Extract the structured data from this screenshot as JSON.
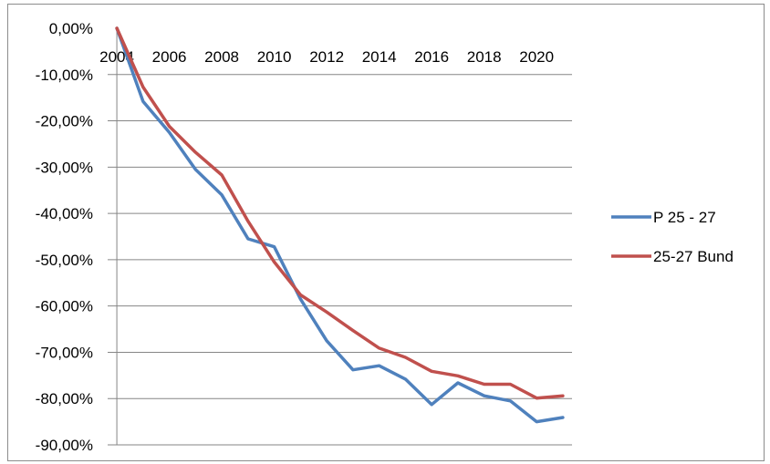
{
  "chart_data": {
    "type": "line",
    "x": [
      2004,
      2005,
      2006,
      2007,
      2008,
      2009,
      2010,
      2011,
      2012,
      2013,
      2014,
      2015,
      2016,
      2017,
      2018,
      2019,
      2020,
      2021
    ],
    "xticks": [
      "2004",
      "2006",
      "2008",
      "2010",
      "2012",
      "2014",
      "2016",
      "2018",
      "2020"
    ],
    "yticks": [
      "0,00%",
      "-10,00%",
      "-20,00%",
      "-30,00%",
      "-40,00%",
      "-50,00%",
      "-60,00%",
      "-70,00%",
      "-80,00%",
      "-90,00%"
    ],
    "ylim": [
      -90,
      0
    ],
    "grid": true,
    "legend_position": "right",
    "series": [
      {
        "name": "P 25 - 27",
        "color": "#4F81BD",
        "values": [
          0,
          -15.8,
          -22.5,
          -30.5,
          -36,
          -45.5,
          -47.2,
          -58.5,
          -67.5,
          -73.8,
          -72.9,
          -75.8,
          -81.3,
          -76.6,
          -79.4,
          -80.5,
          -85,
          -84.1
        ]
      },
      {
        "name": "25-27 Bund",
        "color": "#C0504D",
        "values": [
          0,
          -12.7,
          -21.2,
          -26.8,
          -31.7,
          -41.7,
          -50.5,
          -57.6,
          -61.3,
          -65.3,
          -69.1,
          -71.1,
          -74.1,
          -75.1,
          -76.9,
          -76.9,
          -79.9,
          -79.4
        ]
      }
    ]
  }
}
